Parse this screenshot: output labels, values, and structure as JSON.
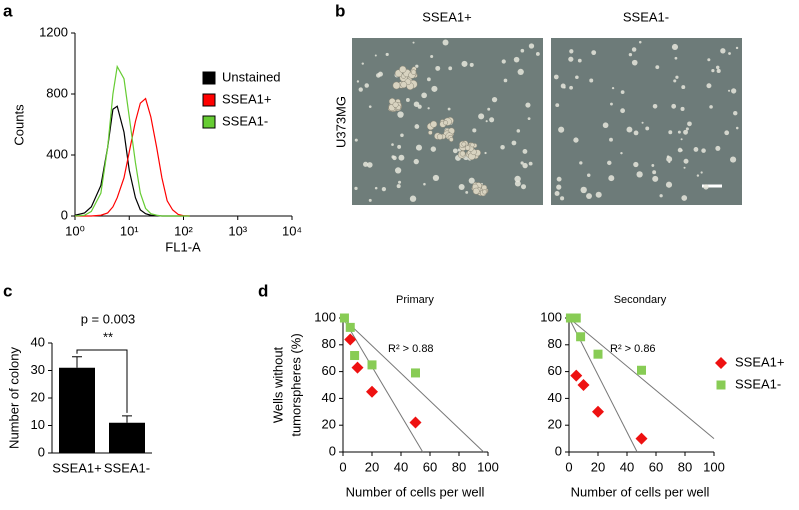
{
  "chart_data": [
    {
      "type": "line",
      "panel_label": "a",
      "xlabel": "FL1-A",
      "ylabel": "Counts",
      "xscale": "log",
      "xlim": [
        1,
        10000
      ],
      "xticks": [
        {
          "value": 1,
          "label": "10⁰"
        },
        {
          "value": 10,
          "label": "10¹"
        },
        {
          "value": 100,
          "label": "10²"
        },
        {
          "value": 1000,
          "label": "10³"
        },
        {
          "value": 10000,
          "label": "10⁴"
        }
      ],
      "ylim": [
        0,
        1200
      ],
      "yticks": [
        0,
        400,
        800,
        1200
      ],
      "x": [
        1,
        1.5,
        2,
        3,
        4,
        5,
        6,
        8,
        10,
        13,
        16,
        20,
        25,
        32,
        40,
        50,
        63,
        80,
        100,
        130
      ],
      "series": [
        {
          "name": "Unstained",
          "color": "#000000",
          "values": [
            5,
            20,
            60,
            200,
            450,
            700,
            720,
            550,
            300,
            120,
            40,
            15,
            5,
            2,
            0,
            0,
            0,
            0,
            0,
            0
          ]
        },
        {
          "name": "SSEA1+",
          "color": "#ff0000",
          "values": [
            0,
            0,
            0,
            5,
            20,
            60,
            120,
            250,
            420,
            620,
            740,
            770,
            650,
            450,
            250,
            100,
            40,
            10,
            2,
            0
          ]
        },
        {
          "name": "SSEA1-",
          "color": "#66cc33",
          "values": [
            0,
            5,
            30,
            150,
            450,
            800,
            980,
            900,
            650,
            350,
            150,
            50,
            15,
            5,
            0,
            0,
            0,
            0,
            0,
            0
          ]
        }
      ]
    },
    {
      "type": "bar",
      "panel_label": "c",
      "ylabel": "Number of colony",
      "categories": [
        "SSEA1+",
        "SSEA1-"
      ],
      "values": [
        31,
        11
      ],
      "errors": [
        4,
        2.5
      ],
      "color": "#000000",
      "ylim": [
        0,
        40
      ],
      "yticks": [
        0,
        10,
        20,
        30,
        40
      ],
      "annotations": [
        "p = 0.003",
        "**"
      ]
    },
    {
      "type": "scatter",
      "panel_label": "d",
      "title": "Primary",
      "xlabel": "Number of cells per well",
      "ylabel": [
        "Wells without",
        "tumorspheres (%)"
      ],
      "annotation": "R² > 0.88",
      "xlim": [
        0,
        100
      ],
      "xticks": [
        0,
        20,
        40,
        60,
        80,
        100
      ],
      "ylim": [
        0,
        100
      ],
      "yticks": [
        0,
        20,
        40,
        60,
        80,
        100
      ],
      "series": [
        {
          "color": "#ee1111",
          "marker": "diamond",
          "x": [
            5,
            10,
            20,
            50
          ],
          "values": [
            84,
            63,
            45,
            22
          ]
        },
        {
          "color": "#88cc55",
          "marker": "square",
          "x": [
            1,
            5,
            8,
            20,
            50
          ],
          "values": [
            100,
            93,
            72,
            65,
            59
          ]
        }
      ],
      "fit_lines": [
        {
          "x": [
            0,
            55
          ],
          "values": [
            100,
            0
          ]
        },
        {
          "x": [
            0,
            97
          ],
          "values": [
            100,
            0
          ]
        }
      ]
    },
    {
      "type": "scatter",
      "title": "Secondary",
      "xlabel": "Number of cells per well",
      "annotation": "R² > 0.86",
      "xlim": [
        0,
        100
      ],
      "xticks": [
        0,
        20,
        40,
        60,
        80,
        100
      ],
      "ylim": [
        0,
        100
      ],
      "yticks": [
        0,
        20,
        40,
        60,
        80,
        100
      ],
      "series": [
        {
          "name": "SSEA1+",
          "color": "#ee1111",
          "marker": "diamond",
          "x": [
            5,
            10,
            20,
            50
          ],
          "values": [
            57,
            50,
            30,
            10
          ]
        },
        {
          "name": "SSEA1-",
          "color": "#88cc55",
          "marker": "square",
          "x": [
            1,
            3,
            5,
            8,
            20,
            50
          ],
          "values": [
            100,
            100,
            100,
            86,
            73,
            61
          ]
        }
      ],
      "fit_lines": [
        {
          "x": [
            0,
            47
          ],
          "values": [
            100,
            0
          ]
        },
        {
          "x": [
            0,
            100
          ],
          "values": [
            100,
            10
          ]
        }
      ]
    }
  ],
  "panel_b": {
    "panel_label": "b",
    "row_label": "U373MG",
    "images": [
      {
        "title": "SSEA1+"
      },
      {
        "title": "SSEA1-"
      }
    ]
  }
}
